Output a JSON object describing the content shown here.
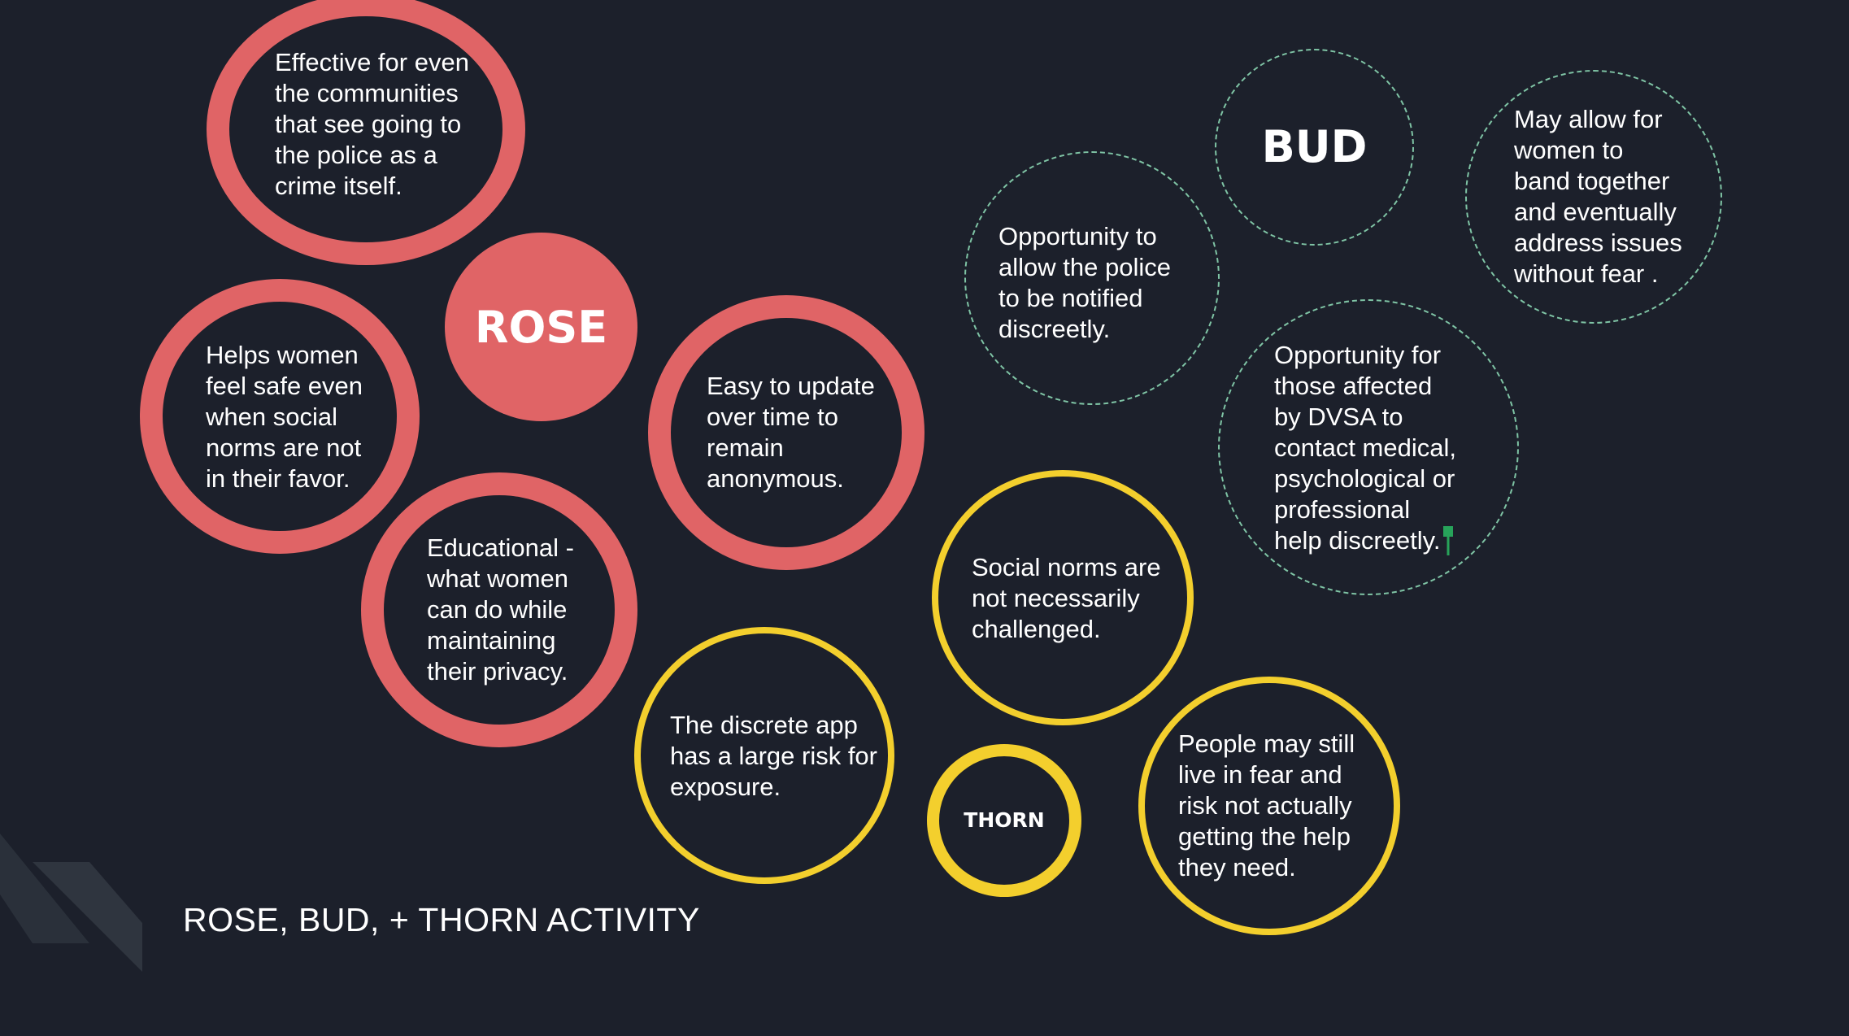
{
  "slide": {
    "title": "ROSE, BUD, + THORN ACTIVITY",
    "colors": {
      "background": "#1c202b",
      "rose": "#e06466",
      "thorn": "#f3cf2d",
      "bud": "#7fc4a5",
      "text": "#ffffff"
    }
  },
  "rose": {
    "label": "ROSE",
    "notes": [
      "Effective for even\nthe communities\nthat see going to\nthe police as a\ncrime itself.",
      "Helps women\nfeel safe even\nwhen social\nnorms are not\nin their favor.",
      "Easy to update\nover time to\nremain\nanonymous.",
      "Educational -\nwhat women\ncan do while\nmaintaining\ntheir privacy."
    ]
  },
  "bud": {
    "label": "BUD",
    "notes": [
      "Opportunity to\nallow the police\nto be notified\ndiscreetly.",
      "May allow for\nwomen to\nband together\nand eventually\naddress issues\nwithout fear .",
      "Opportunity for\nthose affected\nby DVSA to\ncontact medical,\npsychological or\nprofessional\nhelp discreetly."
    ]
  },
  "thorn": {
    "label": "THORN",
    "notes": [
      "Social norms are\nnot necessarily\nchallenged.",
      "The discrete app\nhas a large risk for\nexposure.",
      "People may still\nlive in fear and\nrisk not actually\ngetting the help\nthey need."
    ]
  }
}
